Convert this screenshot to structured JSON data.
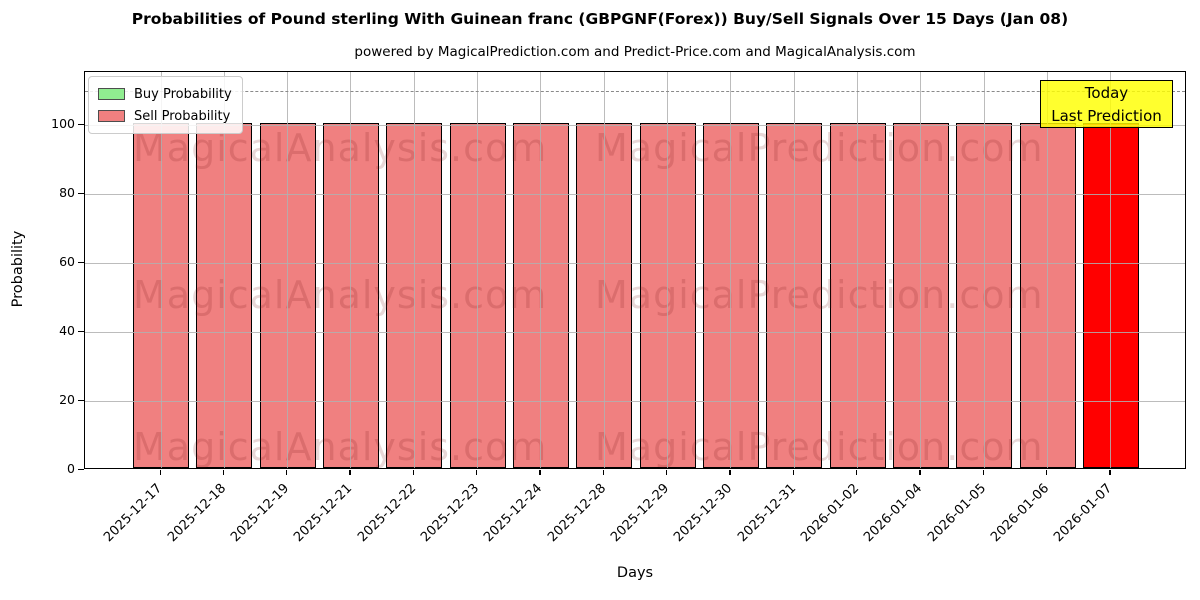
{
  "header": {
    "title": "Probabilities of Pound sterling With Guinean franc (GBPGNF(Forex)) Buy/Sell Signals Over 15 Days (Jan 08)",
    "subtitle": "powered by MagicalPrediction.com and Predict-Price.com and MagicalAnalysis.com"
  },
  "legend": {
    "items": [
      {
        "label": "Buy Probability",
        "color": "#90ee90"
      },
      {
        "label": "Sell Probability",
        "color": "#f08080"
      }
    ]
  },
  "annotation": {
    "line1": "Today",
    "line2": "Last Prediction",
    "bg_color": "#ffff00"
  },
  "watermarks": {
    "left": "MagicalAnalysis.com",
    "right": "MagicalPrediction.com"
  },
  "chart_data": {
    "type": "bar",
    "title": "Probabilities of Pound sterling With Guinean franc (GBPGNF(Forex)) Buy/Sell Signals Over 15 Days (Jan 08)",
    "xlabel": "Days",
    "ylabel": "Probability",
    "categories": [
      "2025-12-17",
      "2025-12-18",
      "2025-12-19",
      "2025-12-21",
      "2025-12-22",
      "2025-12-23",
      "2025-12-24",
      "2025-12-28",
      "2025-12-29",
      "2025-12-30",
      "2025-12-31",
      "2026-01-02",
      "2026-01-04",
      "2026-01-05",
      "2026-01-06",
      "2026-01-07"
    ],
    "series": [
      {
        "name": "Buy Probability",
        "color": "#90ee90",
        "values": [
          0,
          0,
          0,
          0,
          0,
          0,
          0,
          0,
          0,
          0,
          0,
          0,
          0,
          0,
          0,
          0
        ]
      },
      {
        "name": "Sell Probability",
        "color": "#f08080",
        "values": [
          100,
          100,
          100,
          100,
          100,
          100,
          100,
          100,
          100,
          100,
          100,
          100,
          100,
          100,
          100,
          100
        ]
      }
    ],
    "highlight_bar": {
      "category": "2026-01-07",
      "color": "#ff0000",
      "note": "Today / Last Prediction"
    },
    "yticks": [
      0,
      20,
      40,
      60,
      80,
      100
    ],
    "ylim": [
      0,
      115.5
    ],
    "dashed_line_y": 110,
    "grid": true,
    "grid_color": "#b0b0b0",
    "legend_position": "upper left"
  }
}
